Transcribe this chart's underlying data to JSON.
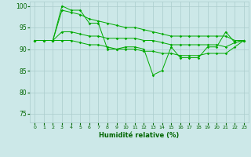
{
  "xlabel": "Humidité relative (%)",
  "xlim": [
    -0.5,
    23.5
  ],
  "ylim": [
    73,
    101
  ],
  "yticks": [
    75,
    80,
    85,
    90,
    95,
    100
  ],
  "xticks": [
    0,
    1,
    2,
    3,
    4,
    5,
    6,
    7,
    8,
    9,
    10,
    11,
    12,
    13,
    14,
    15,
    16,
    17,
    18,
    19,
    20,
    21,
    22,
    23
  ],
  "background_color": "#cce8e8",
  "grid_color": "#aacccc",
  "line_color": "#00aa00",
  "lines": [
    {
      "x": [
        0,
        1,
        2,
        3,
        4,
        5,
        6,
        7,
        8,
        9,
        10,
        11,
        12,
        13,
        14,
        15,
        16,
        17,
        18,
        19,
        20,
        21,
        22,
        23
      ],
      "y": [
        92,
        92,
        92,
        100,
        99,
        99,
        96,
        96,
        90,
        90,
        90.5,
        90.5,
        90,
        84,
        85,
        90.5,
        88,
        88,
        88,
        90.5,
        90.5,
        94,
        91.5,
        92
      ]
    },
    {
      "x": [
        0,
        2,
        3,
        4,
        5,
        6,
        7,
        8,
        9,
        10,
        11,
        12,
        13,
        14,
        15,
        16,
        17,
        18,
        19,
        20,
        21,
        22,
        23
      ],
      "y": [
        92,
        92,
        99,
        98.5,
        98,
        97,
        96.5,
        96,
        95.5,
        95,
        95,
        94.5,
        94,
        93.5,
        93,
        93,
        93,
        93,
        93,
        93,
        93,
        92,
        92
      ]
    },
    {
      "x": [
        0,
        1,
        2,
        3,
        4,
        5,
        6,
        7,
        8,
        9,
        10,
        11,
        12,
        13,
        14,
        15,
        16,
        17,
        18,
        19,
        20,
        21,
        22,
        23
      ],
      "y": [
        92,
        92,
        92,
        94,
        94,
        93.5,
        93,
        93,
        92.5,
        92.5,
        92.5,
        92.5,
        92,
        92,
        91.5,
        91,
        91,
        91,
        91,
        91,
        91,
        90.5,
        91.5,
        92
      ]
    },
    {
      "x": [
        0,
        1,
        2,
        3,
        4,
        5,
        6,
        7,
        8,
        9,
        10,
        11,
        12,
        13,
        14,
        15,
        16,
        17,
        18,
        19,
        20,
        21,
        22,
        23
      ],
      "y": [
        92,
        92,
        92,
        92,
        92,
        91.5,
        91,
        91,
        90.5,
        90,
        90,
        90,
        89.5,
        89.5,
        89,
        89,
        88.5,
        88.5,
        88.5,
        89,
        89,
        89,
        90.5,
        92
      ]
    }
  ]
}
